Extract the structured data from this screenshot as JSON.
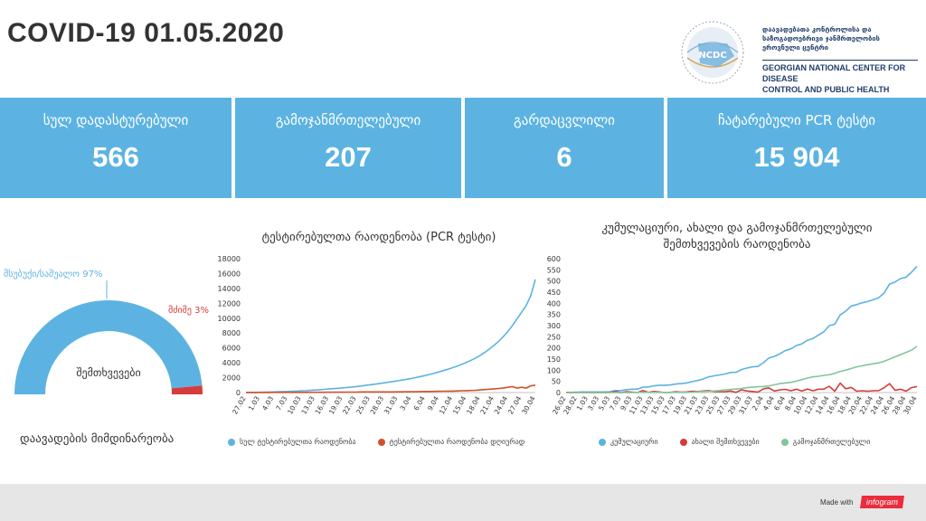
{
  "header": {
    "title": "COVID-19  01.05.2020"
  },
  "logo": {
    "abbr": "NCDC",
    "ge_lines": [
      "დაავადებათა კონტროლისა და",
      "საზოგადოებრივი ჯანმრთელობის",
      "ეროვნული ცენტრი"
    ],
    "en_lines": [
      "GEORGIAN NATIONAL CENTER FOR DISEASE",
      "CONTROL AND PUBLIC HEALTH"
    ]
  },
  "stats": [
    {
      "label": "სულ დადასტურებული",
      "value": "566"
    },
    {
      "label": "გამოჯანმრთელებული",
      "value": "207"
    },
    {
      "label": "გარდაცვლილი",
      "value": "6"
    },
    {
      "label": "ჩატარებული PCR ტესტი",
      "value": "15 904"
    }
  ],
  "gauge": {
    "center_label": "შემთხვევები",
    "caption": "დაავადების მიმდინარეობა",
    "mild_label": "მსუბუქი/საშუალო 97%",
    "severe_label": "მძიმე 3%",
    "mild_pct": 97,
    "severe_pct": 3,
    "colors": {
      "mild": "#5cb3e2",
      "severe": "#d63c3c"
    }
  },
  "chart_data": [
    {
      "type": "line",
      "title": "ტესტირებულთა რაოდენობა (PCR ტესტი)",
      "ylim": [
        0,
        18000
      ],
      "yticks": [
        0,
        2000,
        4000,
        6000,
        8000,
        10000,
        12000,
        14000,
        16000,
        18000
      ],
      "x": [
        "27.02",
        "28.02",
        "29.02",
        "01.03",
        "02.03",
        "03.03",
        "04.03",
        "05.03",
        "06.03",
        "07.03",
        "08.03",
        "09.03",
        "10.03",
        "11.03",
        "12.03",
        "13.03",
        "14.03",
        "15.03",
        "16.03",
        "17.03",
        "18.03",
        "19.03",
        "20.03",
        "21.03",
        "22.03",
        "23.03",
        "24.03",
        "25.03",
        "26.03",
        "27.03",
        "28.03",
        "29.03",
        "30.03",
        "31.03",
        "01.04",
        "02.04",
        "03.04",
        "04.04",
        "05.04",
        "06.04",
        "07.04",
        "08.04",
        "09.04",
        "10.04",
        "11.04",
        "12.04",
        "13.04",
        "14.04",
        "15.04",
        "16.04",
        "17.04",
        "18.04",
        "19.04",
        "20.04",
        "21.04",
        "22.04",
        "23.04",
        "24.04",
        "25.04",
        "26.04",
        "27.04",
        "28.04",
        "29.04",
        "30.04"
      ],
      "xtick_labels": [
        "27.02",
        "1.03",
        "4.03",
        "7.03",
        "10.03",
        "13.03",
        "16.03",
        "19.03",
        "22.03",
        "25.03",
        "28.03",
        "31.03",
        "3.04",
        "6.04",
        "9.04",
        "12.04",
        "15.04",
        "18.04",
        "21.04",
        "24.04",
        "27.04",
        "30.04"
      ],
      "series": [
        {
          "name": "სულ ტესტირებულთა რაოდენობა",
          "color": "#5cb3e2",
          "values": [
            10,
            20,
            30,
            40,
            55,
            70,
            90,
            110,
            130,
            150,
            170,
            200,
            230,
            260,
            300,
            340,
            380,
            420,
            470,
            520,
            570,
            620,
            680,
            740,
            800,
            880,
            960,
            1040,
            1120,
            1210,
            1300,
            1390,
            1480,
            1580,
            1680,
            1790,
            1900,
            2020,
            2150,
            2290,
            2440,
            2600,
            2770,
            2950,
            3140,
            3340,
            3560,
            3800,
            4060,
            4340,
            4650,
            5000,
            5400,
            5850,
            6350,
            6900,
            7500,
            8200,
            9000,
            9900,
            10800,
            11700,
            13000,
            15200
          ]
        },
        {
          "name": "ტესტირებულთა რაოდენობა დღიურად",
          "color": "#d2502c",
          "values": [
            10,
            10,
            10,
            10,
            15,
            15,
            20,
            20,
            20,
            20,
            20,
            30,
            30,
            30,
            40,
            40,
            40,
            40,
            50,
            50,
            50,
            50,
            60,
            60,
            60,
            80,
            80,
            80,
            80,
            90,
            90,
            90,
            90,
            100,
            100,
            110,
            110,
            120,
            130,
            140,
            150,
            160,
            170,
            180,
            190,
            200,
            220,
            240,
            260,
            280,
            310,
            350,
            400,
            450,
            500,
            550,
            600,
            700,
            800,
            600,
            700,
            600,
            900,
            1000
          ]
        }
      ]
    },
    {
      "type": "line",
      "title_lines": [
        "კუმულაციური, ახალი და გამოჯანმრთელებული",
        "შემთხვევების რაოდენობა"
      ],
      "ylim": [
        0,
        600
      ],
      "yticks": [
        0,
        50,
        100,
        150,
        200,
        250,
        300,
        350,
        400,
        450,
        500,
        550,
        600
      ],
      "x": [
        "26.02",
        "27.02",
        "28.02",
        "29.02",
        "01.03",
        "02.03",
        "03.03",
        "04.03",
        "05.03",
        "06.03",
        "07.03",
        "08.03",
        "09.03",
        "10.03",
        "11.03",
        "12.03",
        "13.03",
        "14.03",
        "15.03",
        "16.03",
        "17.03",
        "18.03",
        "19.03",
        "20.03",
        "21.03",
        "22.03",
        "23.03",
        "24.03",
        "25.03",
        "26.03",
        "27.03",
        "28.03",
        "29.03",
        "30.03",
        "31.03",
        "01.04",
        "02.04",
        "03.04",
        "04.04",
        "05.04",
        "06.04",
        "07.04",
        "08.04",
        "09.04",
        "10.04",
        "11.04",
        "12.04",
        "13.04",
        "14.04",
        "15.04",
        "16.04",
        "17.04",
        "18.04",
        "19.04",
        "20.04",
        "21.04",
        "22.04",
        "23.04",
        "24.04",
        "25.04",
        "26.04",
        "27.04",
        "28.04",
        "29.04",
        "30.04"
      ],
      "xtick_labels": [
        "26.02",
        "28.02",
        "1.03",
        "3.03",
        "5.03",
        "7.03",
        "9.03",
        "11.03",
        "13.03",
        "15.03",
        "17.03",
        "19.03",
        "21.03",
        "23.03",
        "25.03",
        "27.03",
        "29.03",
        "31.03",
        "2.04",
        "4.04",
        "6.04",
        "8.04",
        "10.04",
        "12.04",
        "14.04",
        "16.04",
        "18.04",
        "20.04",
        "22.04",
        "24.04",
        "26.04",
        "28.04",
        "30.04"
      ],
      "series": [
        {
          "name": "კუმულაციური",
          "color": "#5cb3e2",
          "values": [
            1,
            1,
            2,
            3,
            3,
            3,
            3,
            3,
            4,
            9,
            9,
            13,
            15,
            15,
            24,
            25,
            30,
            33,
            33,
            34,
            38,
            40,
            43,
            49,
            54,
            61,
            70,
            75,
            79,
            83,
            90,
            91,
            103,
            110,
            115,
            117,
            134,
            155,
            162,
            174,
            188,
            196,
            211,
            218,
            234,
            242,
            257,
            272,
            300,
            306,
            348,
            365,
            388,
            394,
            402,
            408,
            416,
            425,
            446,
            486,
            496,
            511,
            517,
            539,
            566
          ]
        },
        {
          "name": "ახალი შემთხვევები",
          "color": "#d63c3c",
          "values": [
            1,
            0,
            1,
            1,
            0,
            0,
            0,
            0,
            1,
            5,
            0,
            4,
            2,
            0,
            9,
            1,
            5,
            3,
            0,
            1,
            4,
            2,
            3,
            6,
            5,
            7,
            9,
            5,
            4,
            4,
            7,
            1,
            12,
            7,
            5,
            2,
            17,
            21,
            7,
            12,
            14,
            8,
            15,
            7,
            16,
            8,
            15,
            15,
            28,
            6,
            42,
            17,
            23,
            6,
            8,
            6,
            8,
            9,
            21,
            40,
            10,
            15,
            6,
            22,
            27
          ]
        },
        {
          "name": "გამოჯანმრთელებული",
          "color": "#7fc79a",
          "values": [
            0,
            0,
            0,
            0,
            0,
            0,
            0,
            0,
            0,
            0,
            0,
            0,
            0,
            1,
            1,
            1,
            1,
            1,
            1,
            1,
            1,
            1,
            1,
            2,
            4,
            5,
            6,
            7,
            9,
            12,
            14,
            16,
            18,
            22,
            24,
            26,
            27,
            30,
            35,
            40,
            43,
            46,
            51,
            58,
            65,
            70,
            73,
            77,
            80,
            86,
            95,
            100,
            108,
            115,
            120,
            125,
            129,
            133,
            140,
            150,
            160,
            170,
            180,
            190,
            207
          ]
        }
      ]
    }
  ],
  "footer": {
    "made_with": "Made with",
    "brand": "infogram"
  }
}
